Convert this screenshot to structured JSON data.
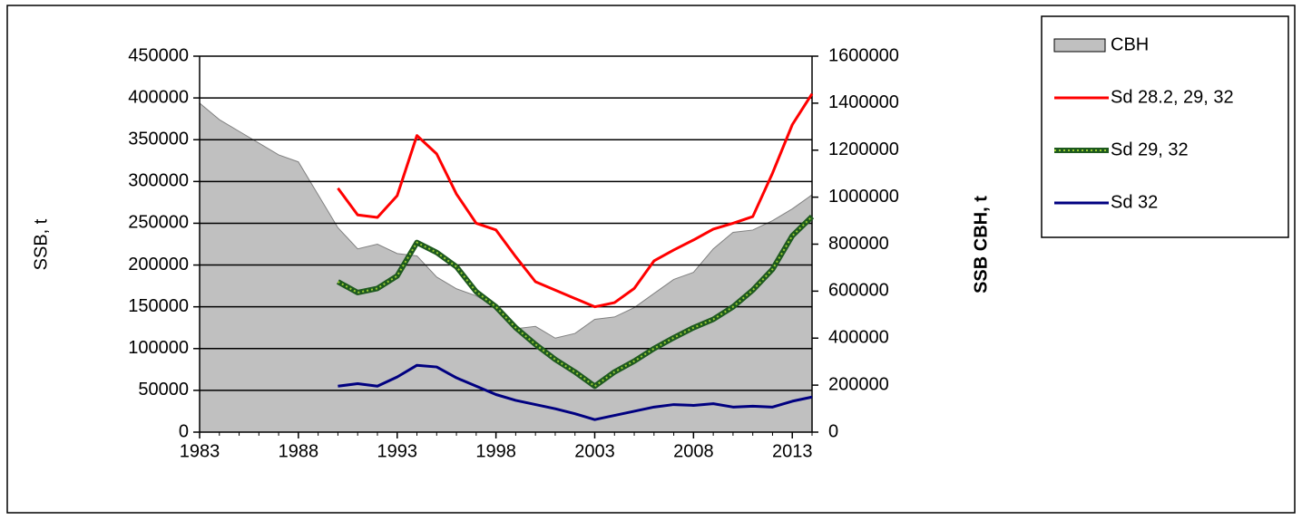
{
  "chart_data": {
    "type": "line",
    "x": [
      1983,
      1984,
      1985,
      1986,
      1987,
      1988,
      1989,
      1990,
      1991,
      1992,
      1993,
      1994,
      1995,
      1996,
      1997,
      1998,
      1999,
      2000,
      2001,
      2002,
      2003,
      2004,
      2005,
      2006,
      2007,
      2008,
      2009,
      2010,
      2011,
      2012,
      2013,
      2014
    ],
    "xlim": [
      1983,
      2014
    ],
    "xticks": [
      1983,
      1988,
      1993,
      1998,
      2003,
      2008,
      2013
    ],
    "ylabel": "SSB, t",
    "y2label": "SSB CBH, t",
    "ylim": [
      0,
      450000
    ],
    "yticks": [
      0,
      50000,
      100000,
      150000,
      200000,
      250000,
      300000,
      350000,
      400000,
      450000
    ],
    "y2lim": [
      0,
      1600000
    ],
    "y2ticks": [
      0,
      200000,
      400000,
      600000,
      800000,
      1000000,
      1200000,
      1400000,
      1600000
    ],
    "grid": true,
    "legend": "upper right",
    "series": [
      {
        "name": "CBH",
        "kind": "area",
        "axis": "y2",
        "color": "#c0c0c0",
        "values": [
          1400000,
          1330000,
          1280000,
          1230000,
          1180000,
          1150000,
          1010000,
          870000,
          780000,
          800000,
          760000,
          750000,
          660000,
          610000,
          580000,
          530000,
          440000,
          450000,
          400000,
          420000,
          480000,
          490000,
          530000,
          590000,
          650000,
          680000,
          780000,
          850000,
          860000,
          900000,
          950000,
          1010000
        ]
      },
      {
        "name": "Sd 28.2, 29, 32",
        "color": "#ff0000",
        "values": [
          null,
          null,
          null,
          null,
          null,
          null,
          null,
          292000,
          260000,
          257000,
          283000,
          355000,
          333000,
          285000,
          250000,
          242000,
          210000,
          180000,
          170000,
          160000,
          150000,
          155000,
          172000,
          205000,
          218000,
          230000,
          243000,
          250000,
          258000,
          310000,
          368000,
          405000
        ]
      },
      {
        "name": "Sd 29, 32",
        "color": "#1e5a1e",
        "values": [
          null,
          null,
          null,
          null,
          null,
          null,
          null,
          180000,
          167000,
          172000,
          187000,
          227000,
          215000,
          198000,
          168000,
          150000,
          125000,
          105000,
          87000,
          72000,
          55000,
          72000,
          85000,
          100000,
          113000,
          125000,
          135000,
          150000,
          170000,
          195000,
          235000,
          258000
        ]
      },
      {
        "name": "Sd 32",
        "color": "#000080",
        "values": [
          null,
          null,
          null,
          null,
          null,
          null,
          null,
          55000,
          58000,
          55000,
          66000,
          80000,
          78000,
          65000,
          55000,
          45000,
          38000,
          33000,
          28000,
          22000,
          15000,
          20000,
          25000,
          30000,
          33000,
          32000,
          34000,
          30000,
          31000,
          30000,
          37000,
          42000
        ]
      }
    ]
  }
}
